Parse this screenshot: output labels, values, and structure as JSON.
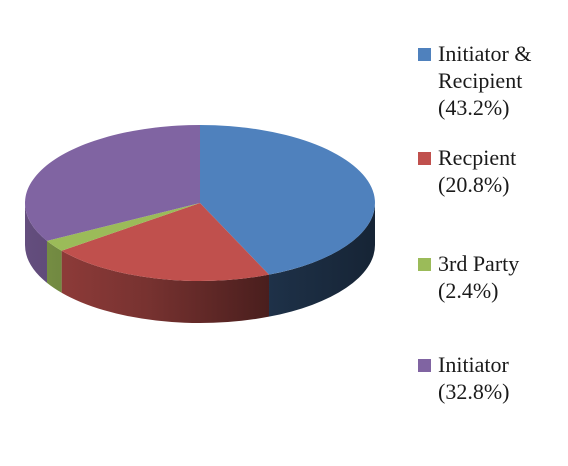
{
  "chart_data": {
    "type": "pie",
    "style": "3d",
    "title": "",
    "legend_position": "right",
    "slices": [
      {
        "label": "Initiator & Recipient",
        "percent": 43.2,
        "legend_lines": [
          "Initiator &",
          "Recipient",
          "(43.2%)"
        ],
        "color": "#4f81bd"
      },
      {
        "label": "Recpient",
        "percent": 20.8,
        "legend_lines": [
          "Recpient",
          "(20.8%)"
        ],
        "color": "#c0504d"
      },
      {
        "label": "3rd Party",
        "percent": 2.4,
        "legend_lines": [
          "3rd Party",
          "(2.4%)"
        ],
        "color": "#9bbb59"
      },
      {
        "label": "Initiator",
        "percent": 32.8,
        "legend_lines": [
          "Initiator",
          "(32.8%)"
        ],
        "color": "#8064a2"
      }
    ]
  }
}
